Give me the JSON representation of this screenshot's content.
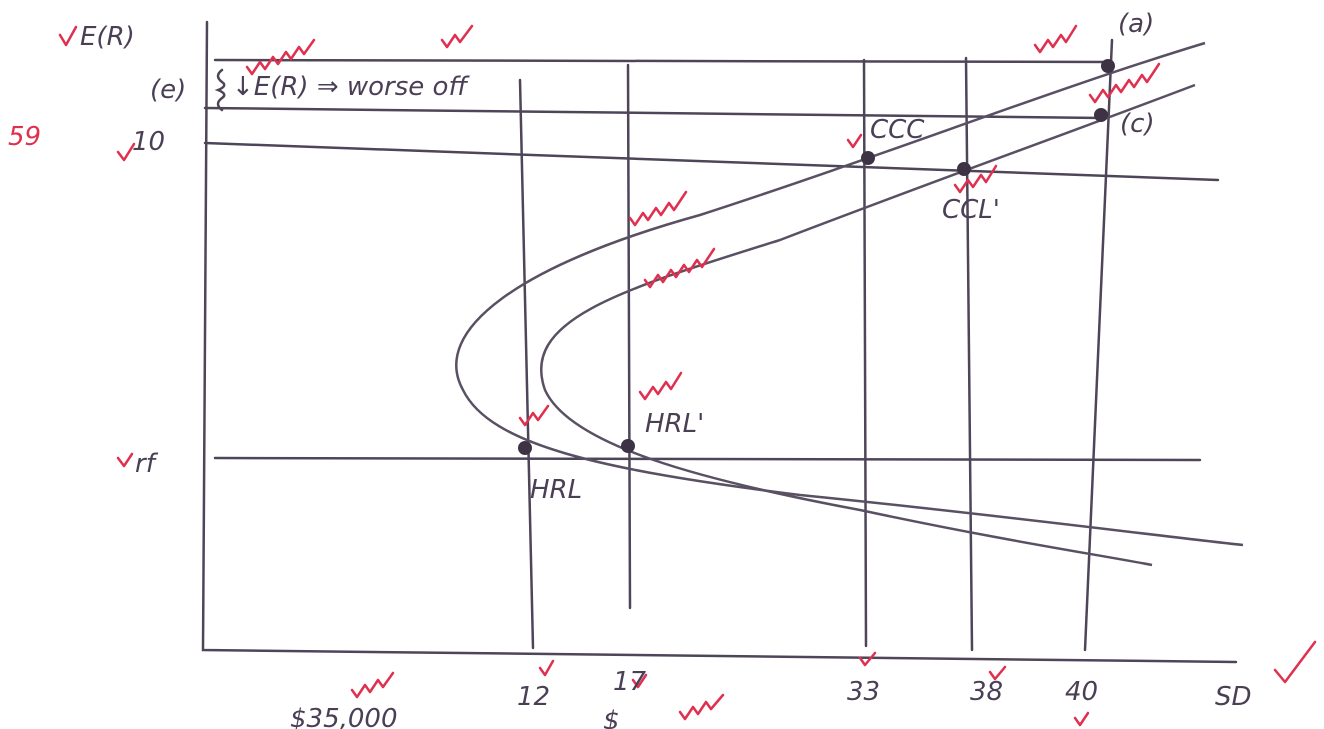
{
  "axes": {
    "y_label": "E(R)",
    "x_label": "SD"
  },
  "y_ticks": [
    "10",
    "rf"
  ],
  "y_note": "59",
  "x_ticks": [
    "12",
    "17",
    "33",
    "38",
    "40"
  ],
  "points": {
    "a": "(a)",
    "c": "(c)",
    "e": "(e)",
    "ccc": "CCC",
    "ccl_prime": "CCL'",
    "hrl": "HRL",
    "hrl_prime": "HRL'"
  },
  "annotation": "↓E(R) ⇒ worse off",
  "bottom_notes": [
    "$35,000",
    "$"
  ]
}
